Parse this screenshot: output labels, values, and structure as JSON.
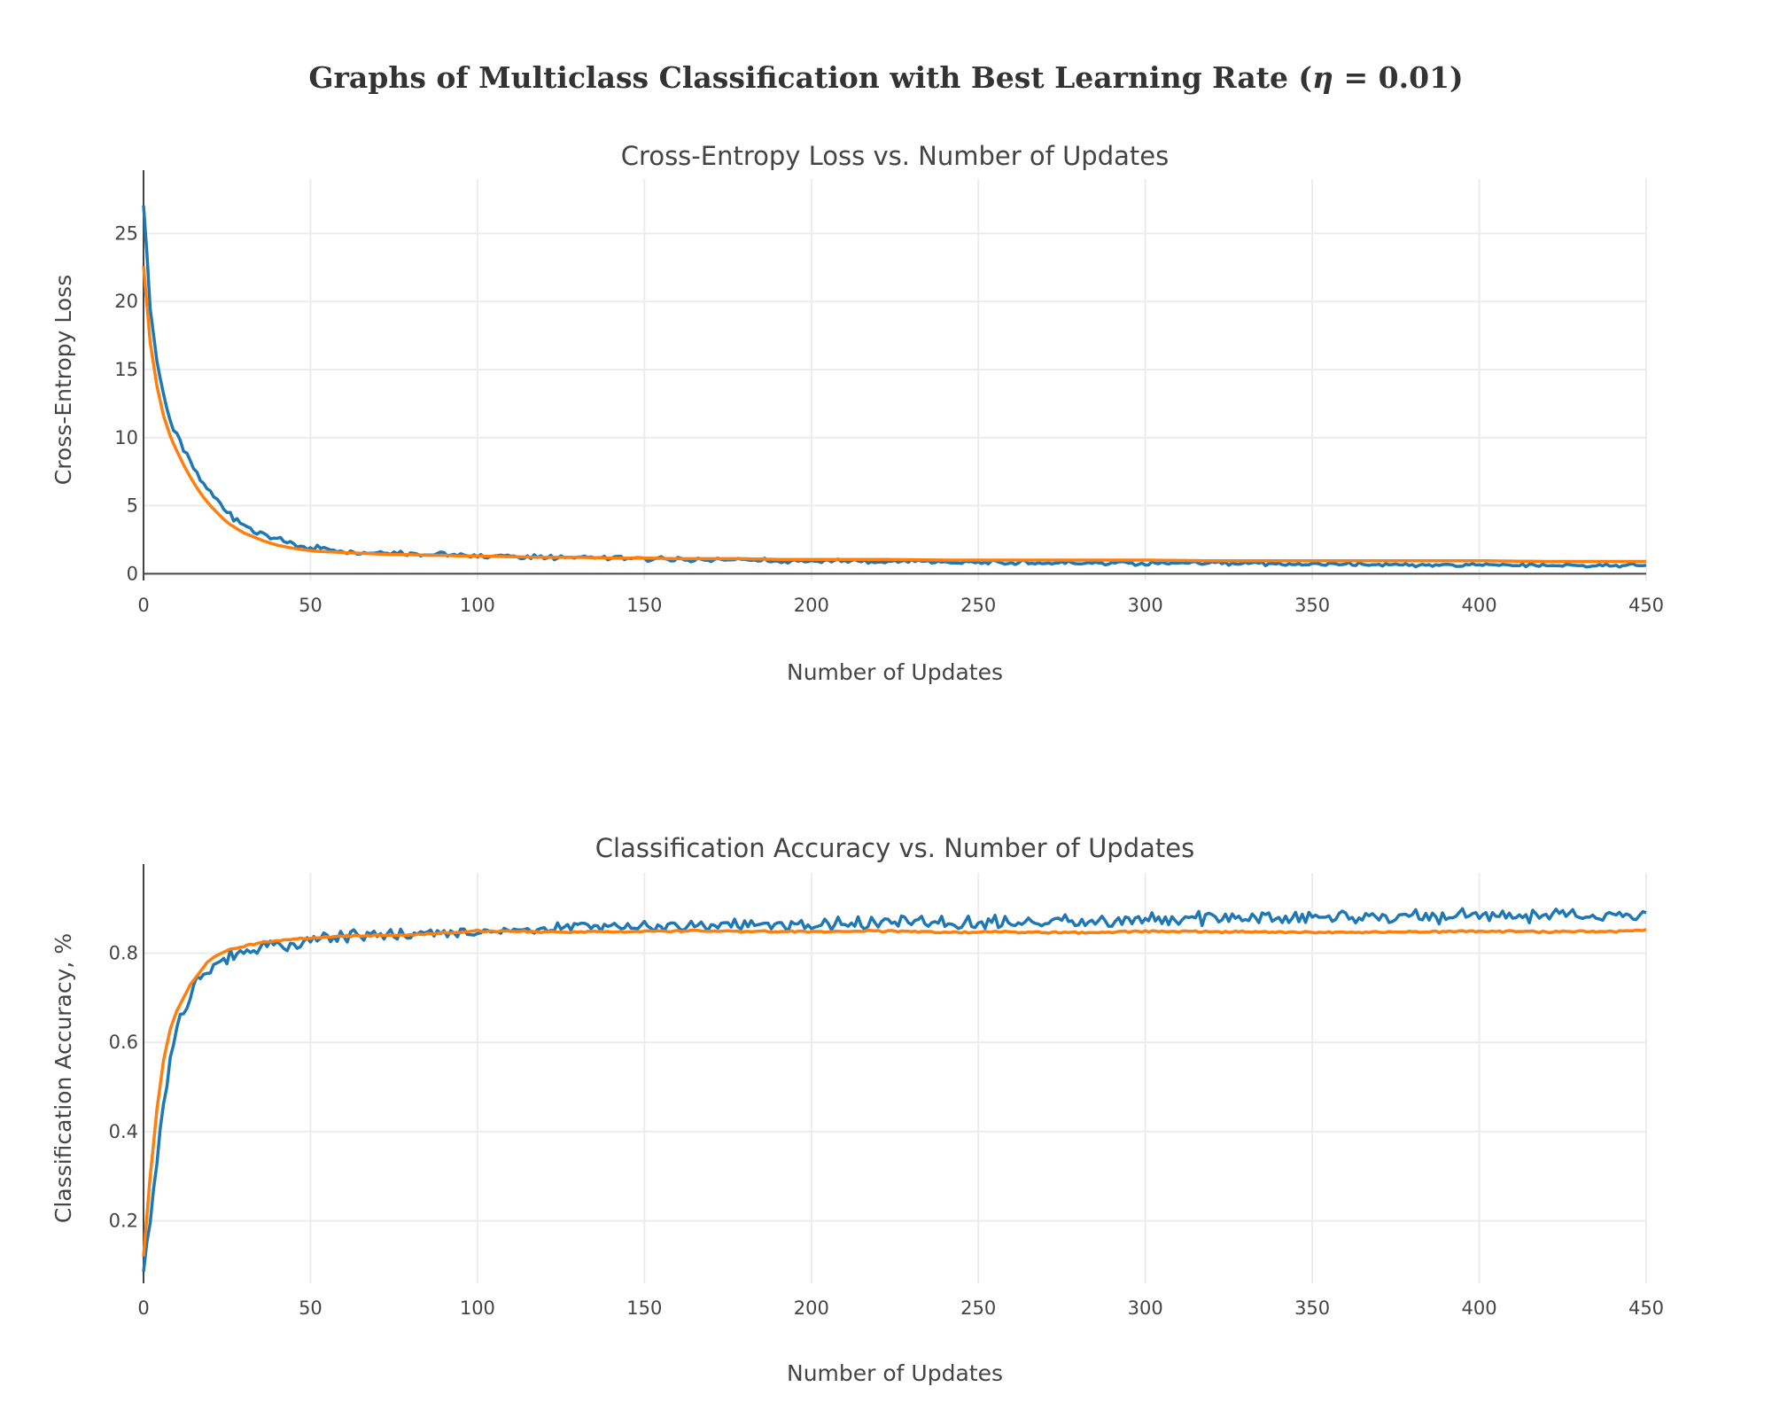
{
  "figure": {
    "title": "Graphs of Multiclass Classification with Best Learning Rate (η = 0.01)",
    "title_prefix": "Graphs of Multiclass Classification with Best Learning Rate (",
    "title_symbol": "η",
    "title_suffix": " = 0.01)"
  },
  "colors": {
    "raw": "#1f77b4",
    "smooth": "#ff7f0e",
    "grid": "#ececec",
    "axis": "#444444"
  },
  "chart_data": [
    {
      "type": "line",
      "title": "Cross-Entropy Loss vs. Number of Updates",
      "xlabel": "Number of Updates",
      "ylabel": "Cross-Entropy Loss",
      "xlim": [
        0,
        450
      ],
      "ylim": [
        -0.5,
        29
      ],
      "xticks": [
        0,
        50,
        100,
        150,
        200,
        250,
        300,
        350,
        400,
        450
      ],
      "yticks": [
        0,
        5,
        10,
        15,
        20,
        25
      ],
      "grid": true,
      "legend": "none",
      "series": [
        {
          "key": "raw",
          "color": "#1f77b4",
          "x": [
            0,
            2,
            4,
            6,
            8,
            10,
            12,
            14,
            16,
            18,
            20,
            22,
            24,
            26,
            28,
            30,
            33,
            36,
            40,
            44,
            48,
            52,
            56,
            60,
            65,
            70,
            75,
            80,
            85,
            90,
            95,
            100,
            110,
            120,
            130,
            140,
            150,
            160,
            170,
            180,
            190,
            200,
            220,
            240,
            260,
            280,
            300,
            320,
            340,
            360,
            380,
            400,
            420,
            440,
            450
          ],
          "y": [
            27.4,
            19.5,
            15.8,
            13.0,
            11.2,
            10.0,
            9.0,
            8.1,
            7.4,
            6.5,
            5.9,
            5.3,
            4.8,
            4.4,
            4.0,
            3.6,
            3.2,
            2.9,
            2.5,
            2.2,
            2.0,
            1.9,
            1.8,
            1.7,
            1.6,
            1.6,
            1.5,
            1.5,
            1.4,
            1.4,
            1.35,
            1.3,
            1.25,
            1.2,
            1.2,
            1.15,
            1.1,
            1.05,
            1.0,
            1.0,
            0.95,
            0.95,
            0.9,
            0.85,
            0.8,
            0.8,
            0.75,
            0.75,
            0.7,
            0.7,
            0.65,
            0.65,
            0.6,
            0.6,
            0.6
          ],
          "noise_amplitude": 0.35
        },
        {
          "key": "smooth",
          "color": "#ff7f0e",
          "x": [
            0,
            2,
            4,
            6,
            8,
            10,
            12,
            14,
            16,
            18,
            20,
            22,
            24,
            26,
            28,
            30,
            33,
            36,
            40,
            44,
            48,
            52,
            56,
            60,
            65,
            70,
            75,
            80,
            85,
            90,
            95,
            100,
            110,
            120,
            130,
            140,
            150,
            160,
            170,
            180,
            190,
            200,
            220,
            240,
            260,
            280,
            300,
            320,
            340,
            360,
            380,
            400,
            420,
            440,
            450
          ],
          "y": [
            22.6,
            17.0,
            13.8,
            11.6,
            10.1,
            9.0,
            8.0,
            7.1,
            6.3,
            5.6,
            5.0,
            4.5,
            4.0,
            3.6,
            3.3,
            3.0,
            2.7,
            2.4,
            2.1,
            1.9,
            1.75,
            1.65,
            1.6,
            1.55,
            1.5,
            1.45,
            1.4,
            1.4,
            1.35,
            1.35,
            1.3,
            1.3,
            1.25,
            1.2,
            1.2,
            1.15,
            1.15,
            1.1,
            1.1,
            1.1,
            1.05,
            1.05,
            1.05,
            1.0,
            1.0,
            1.0,
            1.0,
            0.95,
            0.95,
            0.95,
            0.95,
            0.95,
            0.9,
            0.9,
            0.9
          ],
          "noise_amplitude": 0
        }
      ]
    },
    {
      "type": "line",
      "title": "Classification Accuracy vs. Number of Updates",
      "xlabel": "Number of Updates",
      "ylabel": "Classification Accuracy, %",
      "xlim": [
        0,
        450
      ],
      "ylim": [
        0.06,
        0.98
      ],
      "xticks": [
        0,
        50,
        100,
        150,
        200,
        250,
        300,
        350,
        400,
        450
      ],
      "yticks": [
        0.2,
        0.4,
        0.6,
        0.8
      ],
      "grid": true,
      "legend": "none",
      "series": [
        {
          "key": "raw",
          "color": "#1f77b4",
          "x": [
            0,
            2,
            4,
            6,
            8,
            10,
            12,
            14,
            16,
            18,
            20,
            22,
            25,
            28,
            31,
            35,
            40,
            45,
            50,
            60,
            70,
            80,
            90,
            100,
            120,
            140,
            160,
            180,
            200,
            220,
            240,
            260,
            280,
            300,
            320,
            340,
            360,
            380,
            400,
            420,
            440,
            450
          ],
          "y": [
            0.09,
            0.2,
            0.33,
            0.46,
            0.56,
            0.63,
            0.67,
            0.71,
            0.74,
            0.76,
            0.77,
            0.78,
            0.79,
            0.8,
            0.8,
            0.81,
            0.82,
            0.82,
            0.83,
            0.835,
            0.84,
            0.84,
            0.845,
            0.85,
            0.855,
            0.857,
            0.86,
            0.862,
            0.865,
            0.868,
            0.87,
            0.872,
            0.873,
            0.875,
            0.877,
            0.878,
            0.88,
            0.882,
            0.883,
            0.884,
            0.885,
            0.885
          ],
          "noise_amplitude": 0.018
        },
        {
          "key": "smooth",
          "color": "#ff7f0e",
          "x": [
            0,
            2,
            4,
            6,
            8,
            10,
            12,
            14,
            16,
            18,
            20,
            22,
            25,
            28,
            31,
            35,
            40,
            45,
            50,
            60,
            70,
            80,
            90,
            100,
            120,
            140,
            160,
            180,
            200,
            220,
            240,
            260,
            280,
            300,
            320,
            340,
            360,
            380,
            400,
            420,
            440,
            450
          ],
          "y": [
            0.12,
            0.3,
            0.45,
            0.56,
            0.63,
            0.67,
            0.7,
            0.73,
            0.75,
            0.77,
            0.785,
            0.795,
            0.805,
            0.812,
            0.818,
            0.823,
            0.828,
            0.832,
            0.834,
            0.838,
            0.84,
            0.842,
            0.845,
            0.85,
            0.848,
            0.848,
            0.85,
            0.849,
            0.848,
            0.85,
            0.847,
            0.848,
            0.846,
            0.849,
            0.848,
            0.848,
            0.847,
            0.848,
            0.849,
            0.848,
            0.849,
            0.852
          ],
          "noise_amplitude": 0.0025
        }
      ]
    }
  ]
}
